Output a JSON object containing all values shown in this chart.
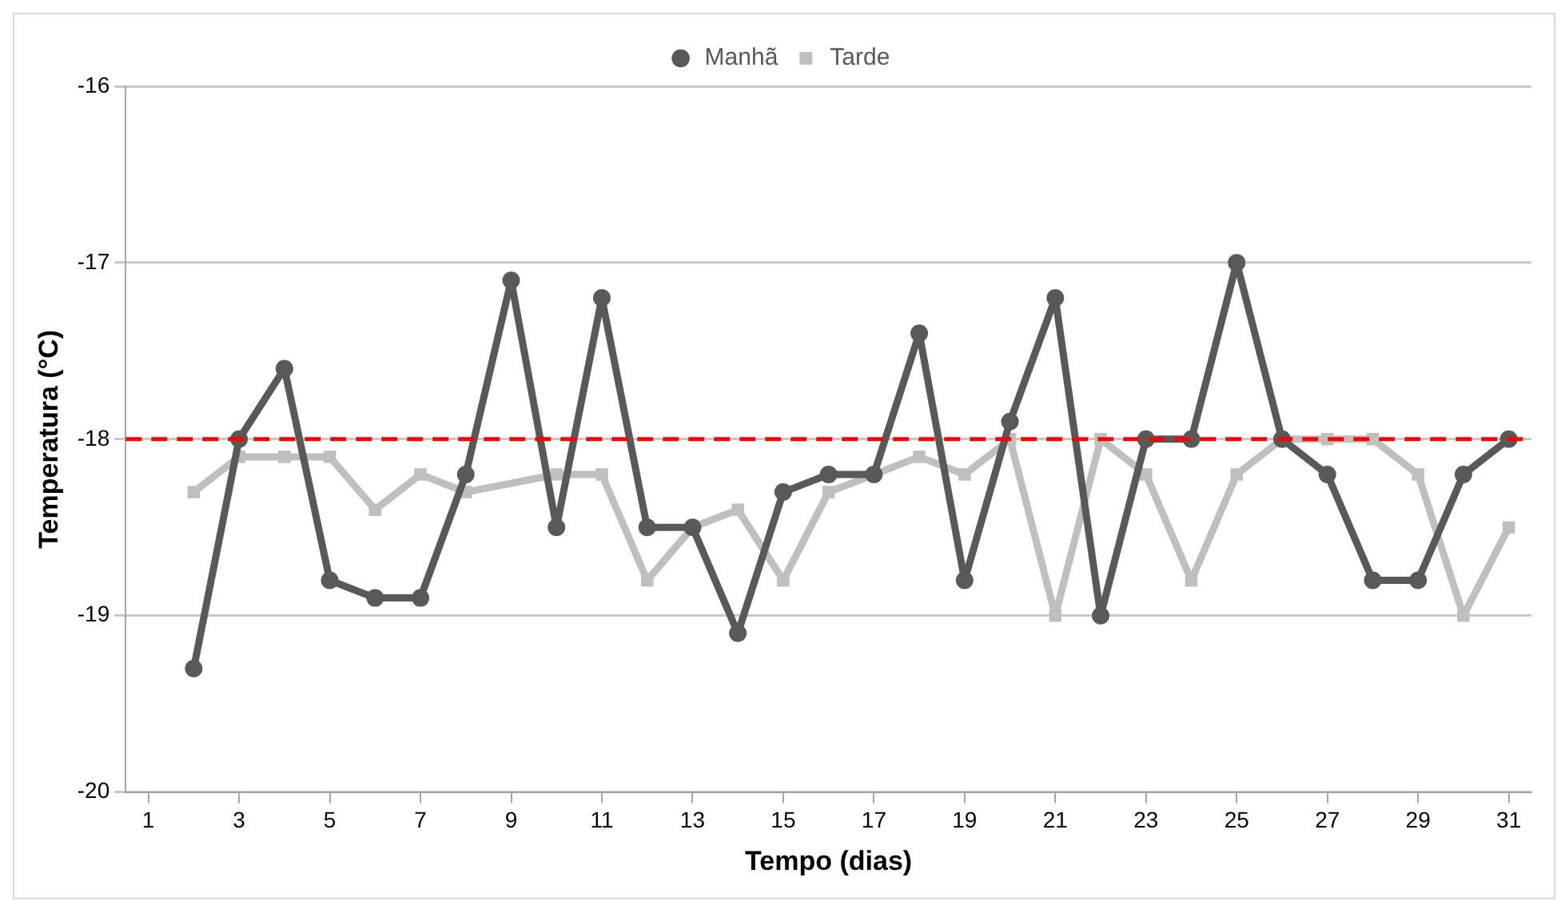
{
  "chart_data": {
    "type": "line",
    "xlabel": "Tempo (dias)",
    "ylabel": "Temperatura (°C)",
    "x": [
      2,
      3,
      4,
      5,
      6,
      7,
      8,
      9,
      10,
      11,
      12,
      13,
      14,
      15,
      16,
      17,
      18,
      19,
      20,
      21,
      22,
      23,
      24,
      25,
      26,
      27,
      28,
      29,
      30,
      31
    ],
    "xlim": [
      0.5,
      31.5
    ],
    "xticks": [
      1,
      3,
      5,
      7,
      9,
      11,
      13,
      15,
      17,
      19,
      21,
      23,
      25,
      27,
      29,
      31
    ],
    "series": [
      {
        "name": "Manhã",
        "color": "#595959",
        "marker": "circle",
        "values": [
          -19.3,
          -18.0,
          -17.6,
          -18.8,
          -18.9,
          -18.9,
          -18.2,
          -17.1,
          -18.5,
          -17.2,
          -18.5,
          -18.5,
          -19.1,
          -18.3,
          -18.2,
          -18.2,
          -17.4,
          -18.8,
          -17.9,
          -17.2,
          -19.0,
          -18.0,
          -18.0,
          -17.0,
          -18.0,
          -18.2,
          -18.8,
          -18.8,
          -18.2,
          -18.0
        ]
      },
      {
        "name": "Tarde",
        "color": "#bfbfbf",
        "marker": "square",
        "values": [
          -18.3,
          -18.1,
          -18.1,
          -18.1,
          -18.4,
          -18.2,
          -18.3,
          null,
          -18.2,
          -18.2,
          -18.8,
          -18.5,
          -18.4,
          -18.8,
          -18.3,
          -18.2,
          -18.1,
          -18.2,
          -18.0,
          -19.0,
          -18.0,
          -18.2,
          -18.8,
          -18.2,
          -18.0,
          -18.0,
          -18.0,
          -18.2,
          -19.0,
          -18.5
        ]
      }
    ],
    "ylim": [
      -20,
      -16
    ],
    "yticks": [
      -20,
      -19,
      -18,
      -17,
      -16
    ],
    "ref_lines": [
      {
        "axis": "y",
        "value": -18,
        "color": "#ff0000",
        "line_style": "dashed"
      }
    ],
    "grid": "y",
    "legend": "top"
  }
}
